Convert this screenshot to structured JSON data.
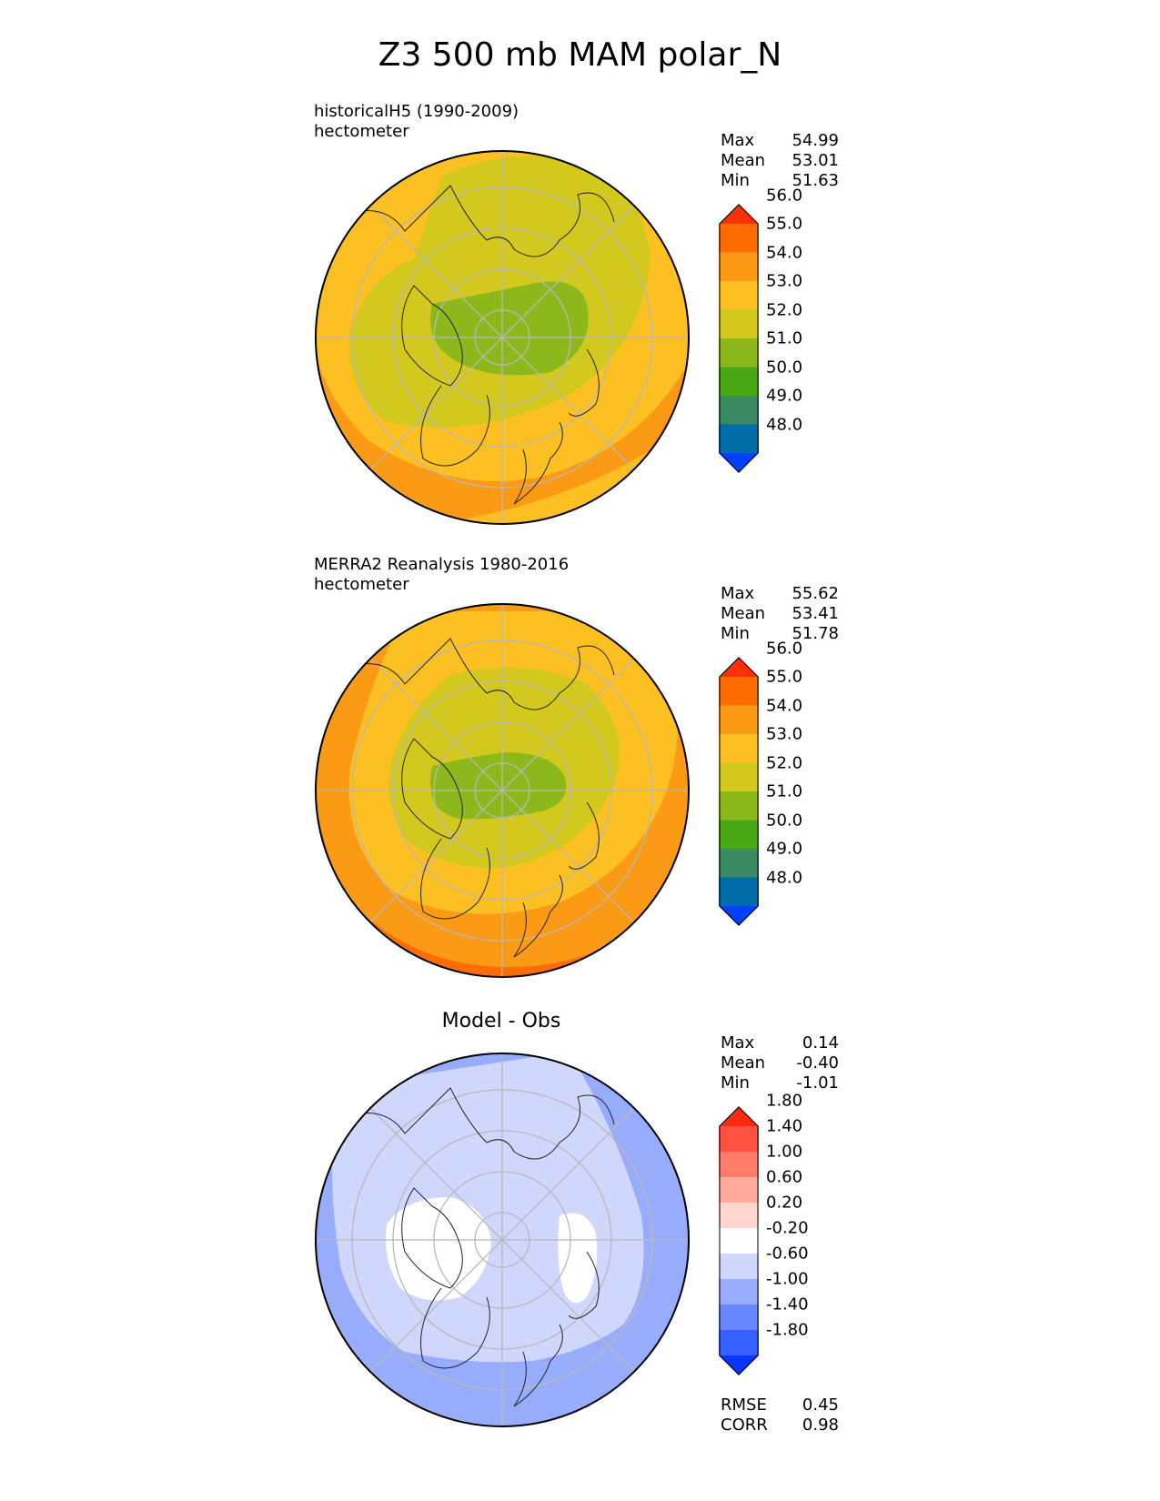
{
  "title": "Z3 500 mb MAM polar_N",
  "panels": [
    {
      "title_lines": [
        "historicalH5 (1990-2009)",
        "hectometer"
      ],
      "stats": [
        {
          "label": "Max",
          "value": "54.99"
        },
        {
          "label": "Mean",
          "value": "53.01"
        },
        {
          "label": "Min",
          "value": "51.63"
        }
      ],
      "colorbar": {
        "colors": [
          "#0040ff",
          "#006ca8",
          "#3a8a64",
          "#4aa816",
          "#8cb81c",
          "#d2c81e",
          "#fcc022",
          "#fb9a14",
          "#fd6d04",
          "#ff2f08"
        ],
        "ticks": [
          "48.0",
          "49.0",
          "50.0",
          "51.0",
          "52.0",
          "53.0",
          "54.0",
          "55.0",
          "56.0"
        ]
      }
    },
    {
      "title_lines": [
        "MERRA2 Reanalysis 1980-2016",
        "hectometer"
      ],
      "stats": [
        {
          "label": "Max",
          "value": "55.62"
        },
        {
          "label": "Mean",
          "value": "53.41"
        },
        {
          "label": "Min",
          "value": "51.78"
        }
      ],
      "colorbar": {
        "colors": [
          "#0040ff",
          "#006ca8",
          "#3a8a64",
          "#4aa816",
          "#8cb81c",
          "#d2c81e",
          "#fcc022",
          "#fb9a14",
          "#fd6d04",
          "#ff2f08"
        ],
        "ticks": [
          "48.0",
          "49.0",
          "50.0",
          "51.0",
          "52.0",
          "53.0",
          "54.0",
          "55.0",
          "56.0"
        ]
      }
    },
    {
      "title_lines": [
        "Model - Obs"
      ],
      "stats": [
        {
          "label": "Max",
          "value": "0.14"
        },
        {
          "label": "Mean",
          "value": "-0.40"
        },
        {
          "label": "Min",
          "value": "-1.01"
        }
      ],
      "colorbar": {
        "colors": [
          "#0a35ff",
          "#3560ff",
          "#6887ff",
          "#98acfc",
          "#cfd7fd",
          "#ffffff",
          "#ffd5d0",
          "#ffaa9a",
          "#ff7c6a",
          "#ff5040",
          "#ff2a10"
        ],
        "ticks": [
          "-1.80",
          "-1.40",
          "-1.00",
          "-0.60",
          "-0.20",
          "0.20",
          "0.60",
          "1.00",
          "1.40",
          "1.80"
        ]
      },
      "footer": [
        {
          "label": "RMSE",
          "value": "0.45"
        },
        {
          "label": "CORR",
          "value": "0.98"
        }
      ]
    }
  ]
}
